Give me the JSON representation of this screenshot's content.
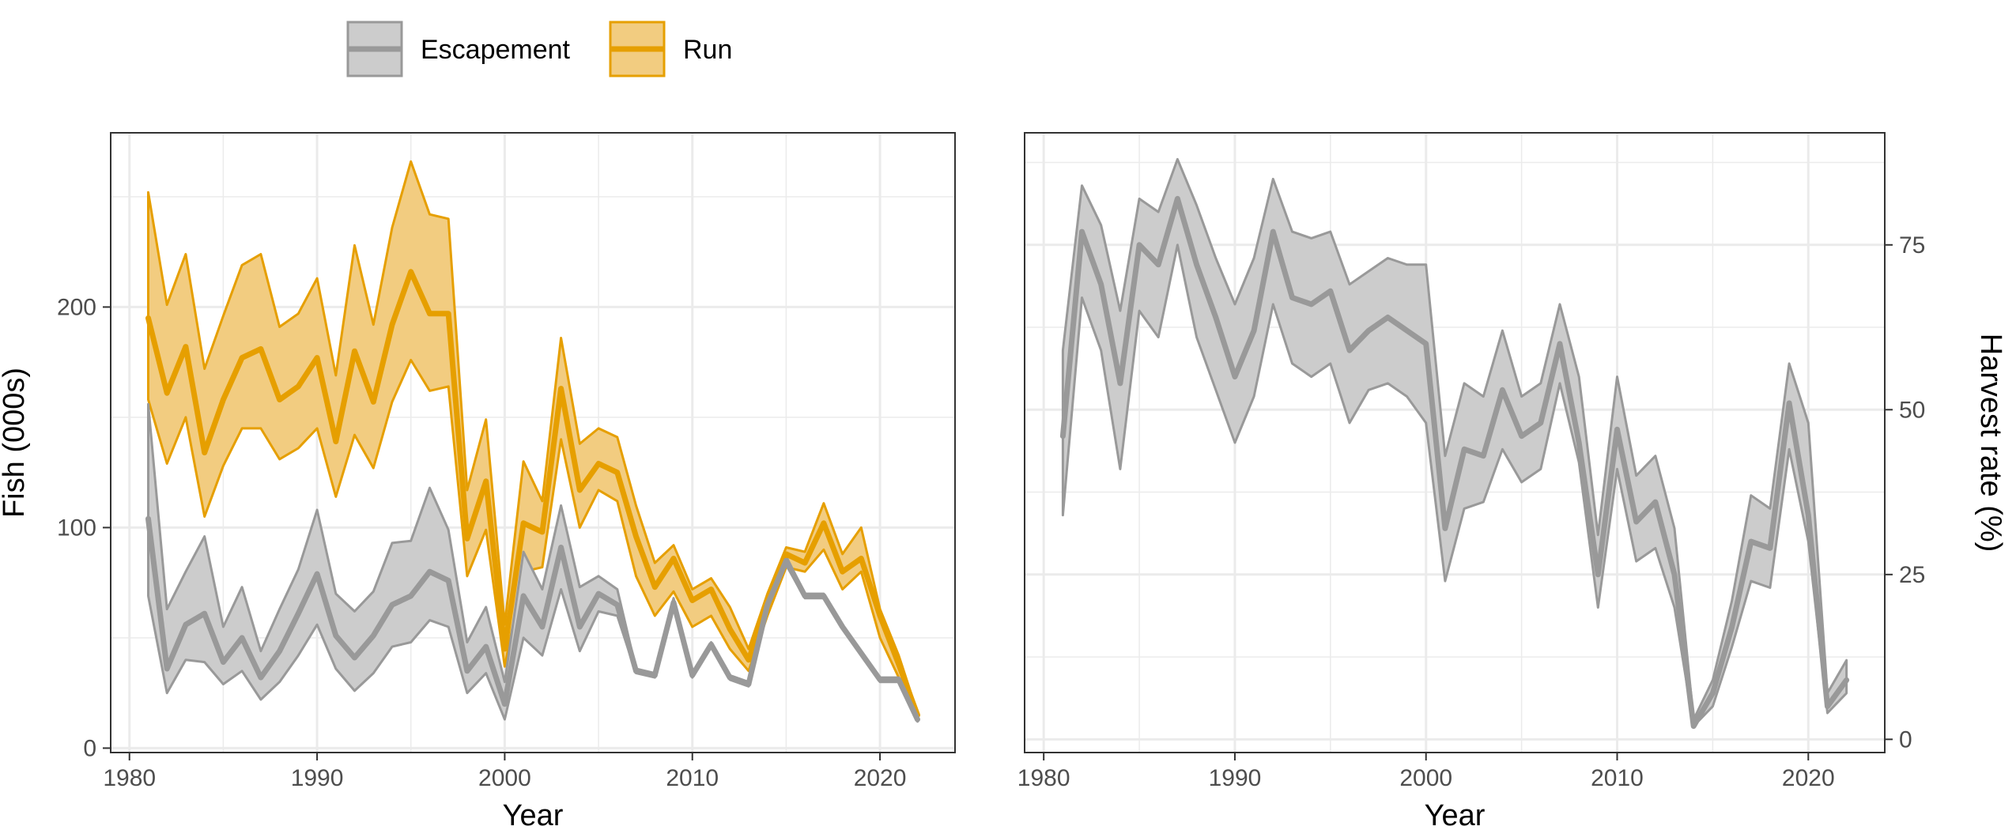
{
  "legend": {
    "items": [
      {
        "label": "Escapement",
        "fill": "#cccccc",
        "stroke": "#999999"
      },
      {
        "label": "Run",
        "fill": "#f2cc80",
        "stroke": "#e69f00"
      }
    ]
  },
  "colors": {
    "escapement_line": "#999999",
    "escapement_band": "#cccccc",
    "run_line": "#e69f00",
    "run_band": "#f2cc80",
    "grid": "#ebebeb",
    "axis_text": "#4d4d4d",
    "border": "#333333"
  },
  "chart_data": [
    {
      "type": "area",
      "panel": "left",
      "xlabel": "Year",
      "ylabel": "Fish (000s)",
      "xlim": [
        1979,
        2024
      ],
      "ylim": [
        -2,
        279
      ],
      "xticks": [
        1980,
        1990,
        2000,
        2010,
        2020
      ],
      "xtick_labels": [
        "1980",
        "1990",
        "2000",
        "2010",
        "2020"
      ],
      "yticks": [
        0,
        100,
        200
      ],
      "ytick_labels": [
        "0",
        "100",
        "200"
      ],
      "grid": true,
      "x": [
        1981,
        1982,
        1983,
        1984,
        1985,
        1986,
        1987,
        1988,
        1989,
        1990,
        1991,
        1992,
        1993,
        1994,
        1995,
        1996,
        1997,
        1998,
        1999,
        2000,
        2001,
        2002,
        2003,
        2004,
        2005,
        2006,
        2007,
        2008,
        2009,
        2010,
        2011,
        2012,
        2013,
        2014,
        2015,
        2016,
        2017,
        2018,
        2019,
        2020,
        2021,
        2022
      ],
      "series": [
        {
          "name": "Run",
          "values": [
            195,
            161,
            182,
            134,
            158,
            177,
            181,
            158,
            164,
            177,
            139,
            180,
            157,
            192,
            216,
            197,
            197,
            95,
            121,
            45,
            102,
            98,
            163,
            117,
            129,
            125,
            96,
            73,
            86,
            67,
            72,
            54,
            40,
            65,
            88,
            84,
            102,
            80,
            86,
            60,
            38,
            15
          ],
          "lower": [
            158,
            129,
            150,
            105,
            128,
            145,
            145,
            131,
            136,
            145,
            114,
            142,
            127,
            157,
            176,
            162,
            164,
            78,
            99,
            37,
            80,
            82,
            140,
            100,
            117,
            112,
            78,
            60,
            71,
            55,
            60,
            45,
            35,
            60,
            82,
            80,
            90,
            72,
            80,
            50,
            32,
            14
          ],
          "upper": [
            252,
            201,
            224,
            172,
            196,
            219,
            224,
            191,
            197,
            213,
            169,
            228,
            192,
            236,
            266,
            242,
            240,
            117,
            149,
            56,
            130,
            112,
            186,
            138,
            145,
            141,
            110,
            84,
            92,
            72,
            77,
            64,
            45,
            70,
            91,
            89,
            111,
            88,
            100,
            63,
            42,
            16
          ]
        },
        {
          "name": "Escapement",
          "values": [
            104,
            36,
            56,
            61,
            39,
            50,
            32,
            44,
            61,
            79,
            51,
            41,
            51,
            65,
            69,
            80,
            76,
            35,
            46,
            20,
            69,
            55,
            91,
            55,
            70,
            65,
            35,
            33,
            66,
            33,
            47,
            32,
            29,
            65,
            85,
            69,
            69,
            55,
            43,
            31,
            31,
            13
          ],
          "lower": [
            69,
            25,
            40,
            39,
            29,
            35,
            22,
            30,
            42,
            56,
            36,
            26,
            34,
            46,
            48,
            58,
            55,
            25,
            34,
            13,
            50,
            42,
            72,
            44,
            62,
            60,
            34,
            32,
            64,
            32,
            46,
            31,
            28,
            64,
            83,
            68,
            68,
            54,
            42,
            30,
            30,
            12
          ],
          "upper": [
            156,
            63,
            80,
            96,
            55,
            73,
            44,
            63,
            81,
            108,
            70,
            62,
            71,
            93,
            94,
            118,
            99,
            48,
            64,
            30,
            89,
            72,
            110,
            73,
            78,
            72,
            36,
            34,
            68,
            34,
            48,
            33,
            30,
            66,
            87,
            70,
            70,
            56,
            44,
            32,
            32,
            14
          ]
        }
      ]
    },
    {
      "type": "area",
      "panel": "right",
      "xlabel": "Year",
      "ylabel": "Harvest rate (%)",
      "xlim": [
        1979,
        2024
      ],
      "ylim": [
        -2,
        92
      ],
      "xticks": [
        1980,
        1990,
        2000,
        2010,
        2020
      ],
      "xtick_labels": [
        "1980",
        "1990",
        "2000",
        "2010",
        "2020"
      ],
      "yticks": [
        0,
        25,
        50,
        75
      ],
      "ytick_labels": [
        "0",
        "25",
        "50",
        "75"
      ],
      "grid": true,
      "x": [
        1981,
        1982,
        1983,
        1984,
        1985,
        1986,
        1987,
        1988,
        1989,
        1990,
        1991,
        1992,
        1993,
        1994,
        1995,
        1996,
        1997,
        1998,
        1999,
        2000,
        2001,
        2002,
        2003,
        2004,
        2005,
        2006,
        2007,
        2008,
        2009,
        2010,
        2011,
        2012,
        2013,
        2014,
        2015,
        2016,
        2017,
        2018,
        2019,
        2020,
        2021,
        2022
      ],
      "series": [
        {
          "name": "Harvest rate",
          "values": [
            46,
            77,
            69,
            54,
            75,
            72,
            82,
            72,
            64,
            55,
            62,
            77,
            67,
            66,
            68,
            59,
            62,
            64,
            62,
            60,
            32,
            44,
            43,
            53,
            46,
            48,
            60,
            45,
            25,
            47,
            33,
            36,
            25,
            2,
            7,
            17,
            30,
            29,
            51,
            34,
            5,
            9
          ],
          "lower": [
            34,
            67,
            59,
            41,
            65,
            61,
            75,
            61,
            53,
            45,
            52,
            66,
            57,
            55,
            57,
            48,
            53,
            54,
            52,
            48,
            24,
            35,
            36,
            44,
            39,
            41,
            54,
            42,
            20,
            41,
            27,
            29,
            20,
            2,
            5,
            14,
            24,
            23,
            44,
            30,
            4,
            7
          ],
          "upper": [
            59,
            84,
            78,
            65,
            82,
            80,
            88,
            81,
            73,
            66,
            73,
            85,
            77,
            76,
            77,
            69,
            71,
            73,
            72,
            72,
            43,
            54,
            52,
            62,
            52,
            54,
            66,
            55,
            31,
            55,
            40,
            43,
            32,
            3,
            9,
            21,
            37,
            35,
            57,
            48,
            7,
            12
          ]
        }
      ]
    }
  ]
}
